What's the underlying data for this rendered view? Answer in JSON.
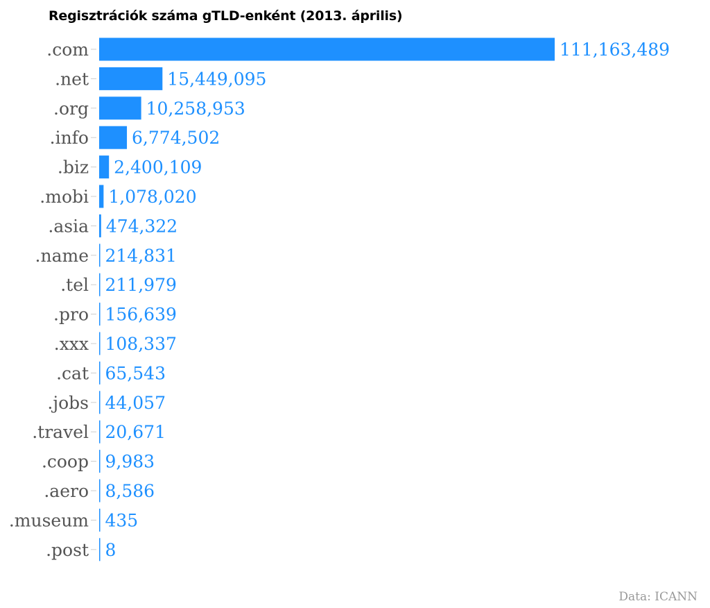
{
  "chart_data": {
    "type": "bar",
    "orientation": "horizontal",
    "title": "Regisztrációk száma gTLD-enként (2013. április)",
    "categories": [
      ".com",
      ".net",
      ".org",
      ".info",
      ".biz",
      ".mobi",
      ".asia",
      ".name",
      ".tel",
      ".pro",
      ".xxx",
      ".cat",
      ".jobs",
      ".travel",
      ".coop",
      ".aero",
      ".museum",
      ".post"
    ],
    "values": [
      111163489,
      15449095,
      10258953,
      6774502,
      2400109,
      1078020,
      474322,
      214831,
      211979,
      156639,
      108337,
      65543,
      44057,
      20671,
      9983,
      8586,
      435,
      8
    ],
    "value_labels": [
      "111,163,489",
      "15,449,095",
      "10,258,953",
      "6,774,502",
      "2,400,109",
      "1,078,020",
      "474,322",
      "214,831",
      "211,979",
      "156,639",
      "108,337",
      "65,543",
      "44,057",
      "20,671",
      "9,983",
      "8,586",
      "435",
      "8"
    ],
    "xlim": [
      0,
      111163489
    ],
    "grid": false,
    "legend": "none",
    "colors": {
      "bar": "#1e90ff",
      "value_label": "#1e90ff",
      "category_label": "#555555",
      "source": "#999999"
    }
  },
  "source": "Data: ICANN"
}
